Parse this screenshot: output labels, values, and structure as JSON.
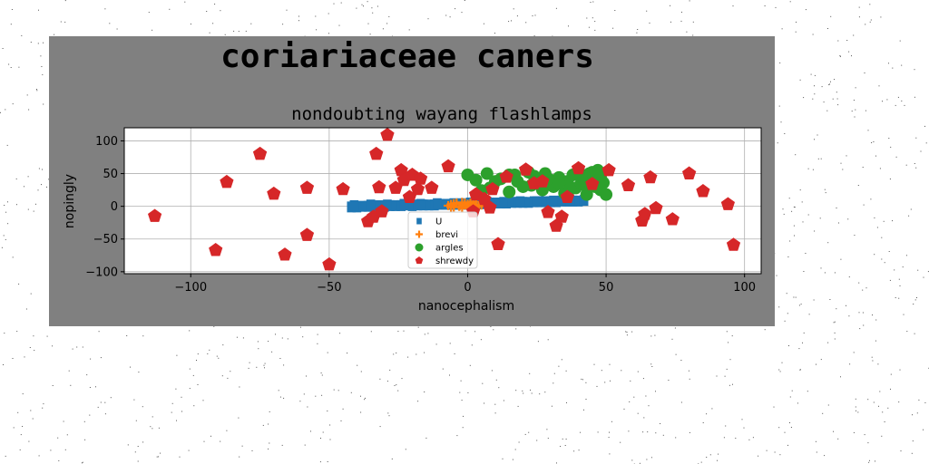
{
  "page": {
    "suptitle": "coriariaceae caners"
  },
  "chart_data": {
    "type": "scatter",
    "title": "nondoubting wayang flashlamps",
    "xlabel": "nanocephalism",
    "ylabel": "nopingly",
    "xlim": [
      -124,
      106
    ],
    "ylim": [
      -103,
      120
    ],
    "xticks": [
      -100,
      -50,
      0,
      50,
      100
    ],
    "xtick_labels": [
      "−100",
      "−50",
      "0",
      "50",
      "100"
    ],
    "yticks": [
      -100,
      -50,
      0,
      50,
      100
    ],
    "ytick_labels": [
      "−100",
      "−50",
      "0",
      "50",
      "100"
    ],
    "grid": true,
    "legend_position": "lower-center",
    "colors": {
      "figure_bg": "#808080",
      "axes_bg": "#ffffff"
    },
    "series": [
      {
        "name": "U",
        "marker": "square",
        "color": "#1f77b4",
        "x": [
          -42,
          -40,
          -38,
          -36,
          -34,
          -32,
          -30,
          -28,
          -26,
          -24,
          -22,
          -20,
          -18,
          -16,
          -14,
          -12,
          -10,
          -8,
          -6,
          -4,
          -2,
          0,
          2,
          4,
          6,
          8,
          10,
          12,
          14,
          16,
          18,
          20,
          22,
          24,
          26,
          28,
          30,
          32,
          34,
          36,
          38,
          40,
          42,
          -41,
          -35,
          -29,
          -23,
          -17,
          -11,
          -5,
          1,
          7,
          13,
          19,
          25,
          31,
          37
        ],
        "y": [
          -1,
          -1,
          0,
          0,
          0,
          1,
          0,
          1,
          1,
          1,
          2,
          1,
          2,
          2,
          2,
          2,
          3,
          3,
          3,
          3,
          4,
          3,
          4,
          4,
          4,
          5,
          5,
          5,
          5,
          6,
          6,
          6,
          6,
          7,
          7,
          7,
          7,
          7,
          8,
          8,
          8,
          8,
          9,
          1,
          2,
          2,
          3,
          3,
          4,
          4,
          5,
          6,
          6,
          7,
          7,
          8,
          8
        ]
      },
      {
        "name": "brevi",
        "marker": "plus",
        "color": "#ff7f0e",
        "x": [
          -7,
          -6,
          -5,
          -4,
          -3,
          -2,
          -1,
          0,
          1,
          2,
          3,
          4,
          5,
          -6,
          -4,
          -2,
          0,
          2,
          4,
          -5,
          -3,
          -1,
          1,
          3
        ],
        "y": [
          1,
          3,
          -1,
          4,
          0,
          6,
          2,
          1,
          5,
          -1,
          3,
          0,
          2,
          -2,
          5,
          -3,
          3,
          7,
          1,
          4,
          0,
          5,
          -2,
          2
        ]
      },
      {
        "name": "argles",
        "marker": "circle",
        "color": "#2ca02c",
        "x": [
          0,
          3,
          7,
          8,
          12,
          15,
          15,
          18,
          20,
          22,
          24,
          25,
          27,
          28,
          30,
          31,
          33,
          35,
          36,
          38,
          39,
          40,
          41,
          42,
          43,
          44,
          45,
          46,
          47,
          48,
          48,
          49,
          50,
          45,
          43,
          41,
          37,
          33,
          29,
          23,
          17,
          10,
          5
        ],
        "y": [
          48,
          40,
          50,
          28,
          42,
          48,
          22,
          38,
          30,
          52,
          46,
          35,
          25,
          50,
          40,
          30,
          44,
          20,
          38,
          48,
          28,
          55,
          35,
          44,
          18,
          50,
          40,
          30,
          55,
          44,
          25,
          36,
          18,
          52,
          30,
          45,
          26,
          35,
          42,
          32,
          48,
          38,
          24
        ]
      },
      {
        "name": "shrewdy",
        "marker": "pentagon",
        "color": "#d62728",
        "x": [
          -113,
          -91,
          -87,
          -75,
          -70,
          -66,
          -58,
          -58,
          -50,
          -45,
          -36,
          -34,
          -33,
          -32,
          -31,
          -29,
          -26,
          -24,
          -23,
          -21,
          -20,
          -18,
          -17,
          -13,
          -7,
          2,
          3,
          6,
          8,
          9,
          11,
          14,
          21,
          24,
          27,
          29,
          32,
          34,
          36,
          40,
          45,
          51,
          58,
          63,
          64,
          66,
          68,
          74,
          80,
          85,
          94,
          96
        ],
        "y": [
          -15,
          -67,
          37,
          80,
          19,
          -74,
          28,
          -44,
          -89,
          26,
          -23,
          -16,
          80,
          29,
          -8,
          109,
          28,
          55,
          40,
          14,
          48,
          26,
          42,
          28,
          61,
          -8,
          18,
          11,
          -2,
          26,
          -58,
          45,
          56,
          35,
          38,
          -9,
          -30,
          -16,
          14,
          58,
          34,
          55,
          32,
          -22,
          -12,
          44,
          -3,
          -20,
          50,
          23,
          3,
          -59
        ]
      }
    ]
  }
}
